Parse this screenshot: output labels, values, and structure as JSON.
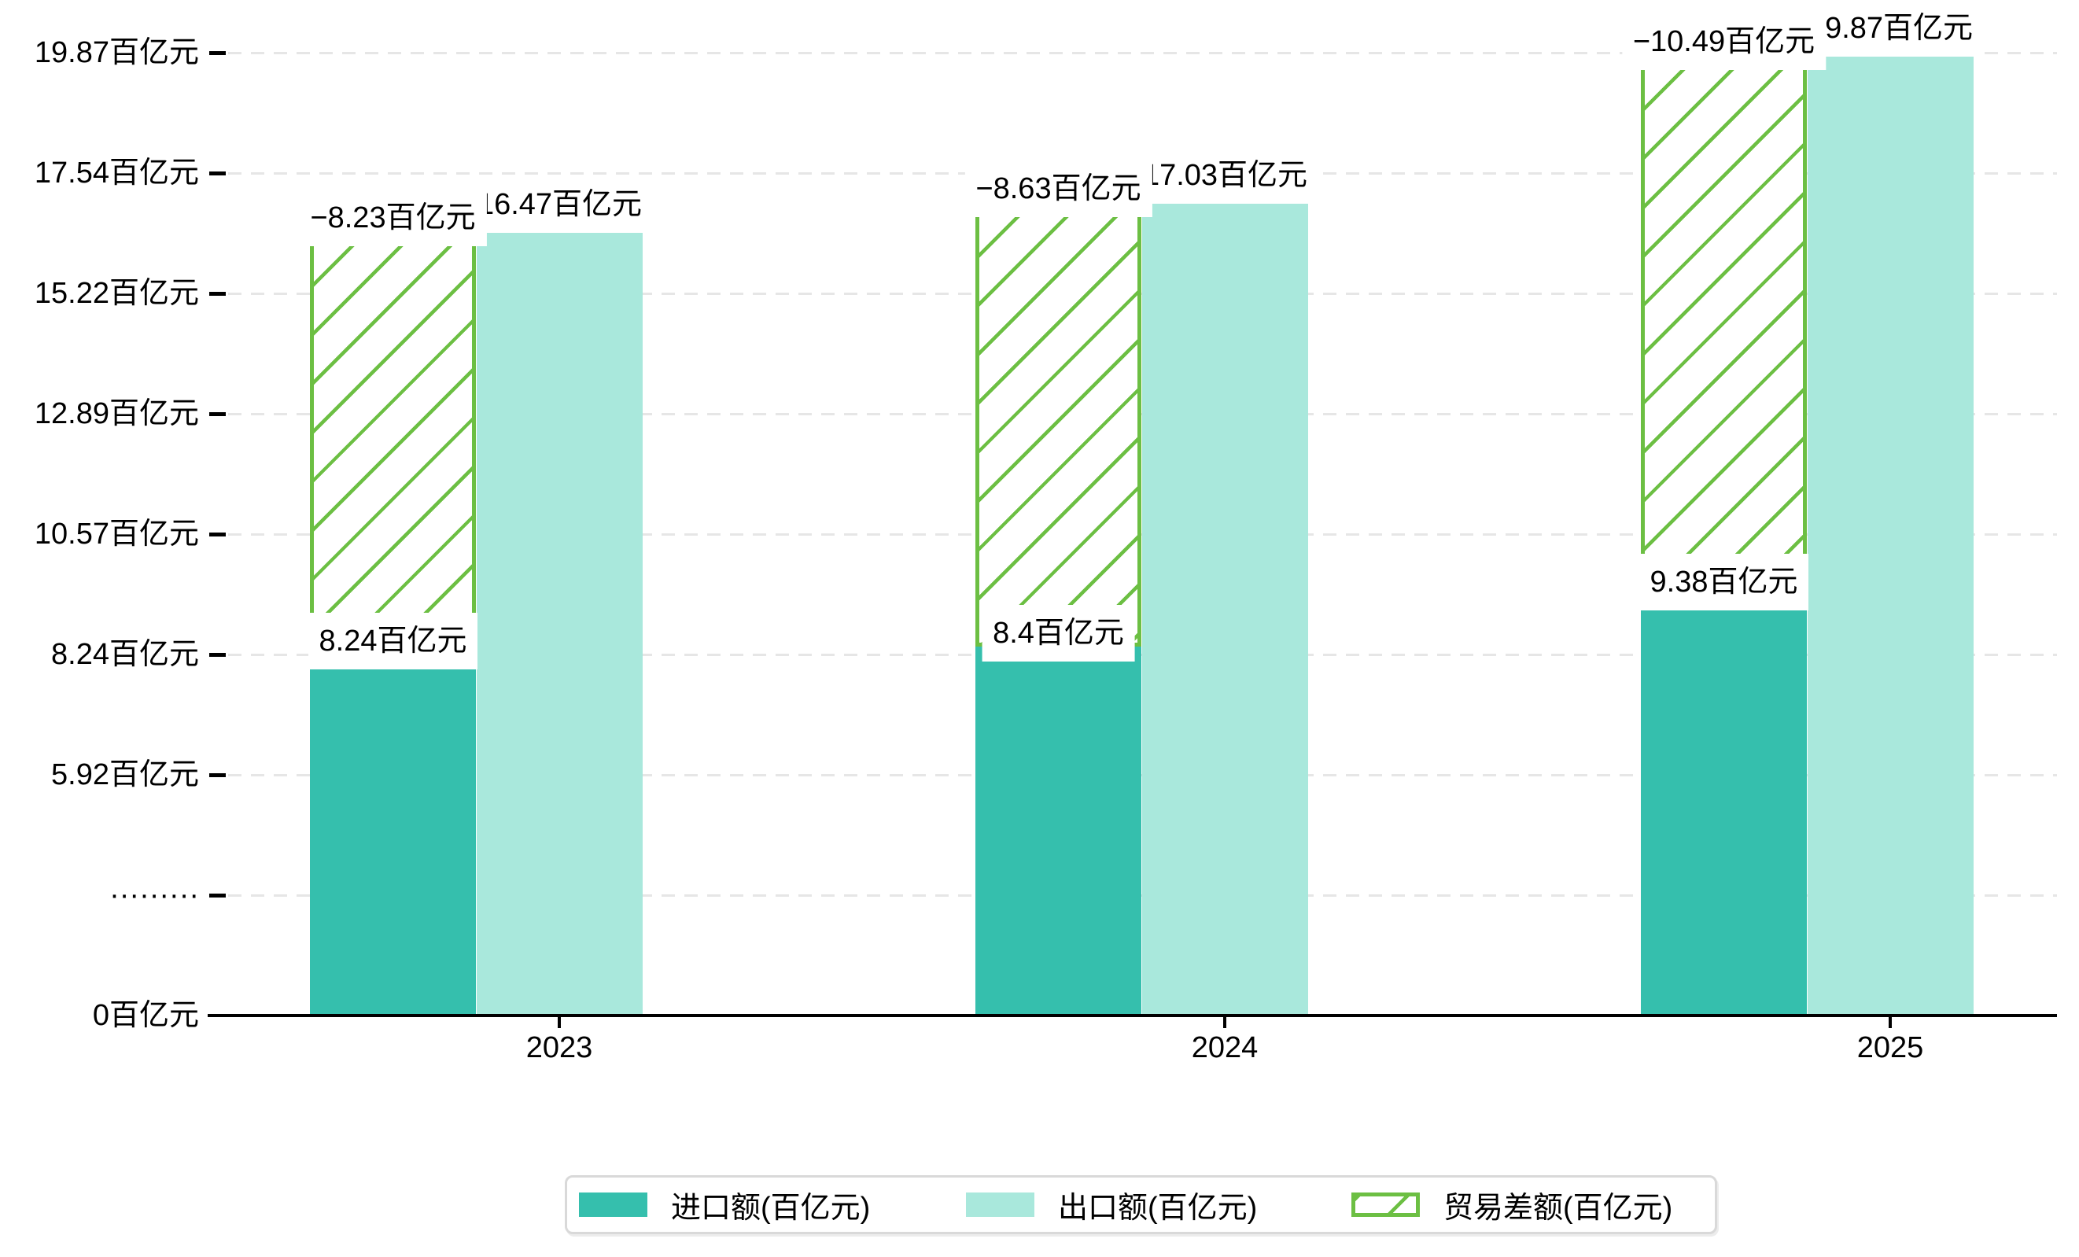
{
  "chart_data": {
    "type": "bar",
    "title": "",
    "categories": [
      "2023",
      "2024",
      "2025"
    ],
    "series": [
      {
        "name": "进口额(百亿元)",
        "key": "import",
        "color": "#35BFAD",
        "values": [
          8.24,
          8.4,
          9.38
        ],
        "data_labels": [
          "8.24百亿元",
          "8.4百亿元",
          "9.38百亿元"
        ]
      },
      {
        "name": "出口额(百亿元)",
        "key": "export",
        "color": "#A9E8DC",
        "values": [
          16.47,
          17.03,
          19.87
        ],
        "data_labels": [
          "16.47百亿元",
          "17.03百亿元",
          "19.87百亿元"
        ]
      },
      {
        "name": "贸易差额(百亿元)",
        "key": "balance",
        "color": "#6CBF43",
        "pattern": "diagonal-hatch",
        "bar_span": "floating bar from import value up to export value",
        "values": [
          -8.23,
          -8.63,
          -10.49
        ],
        "data_labels": [
          "−8.23百亿元",
          "−8.63百亿元",
          "−10.49百亿元"
        ]
      }
    ],
    "y_axis": {
      "unit": "百亿元",
      "tick_labels_top_to_bottom": [
        "19.87百亿元",
        "17.54百亿元",
        "15.22百亿元",
        "12.89百亿元",
        "10.57百亿元",
        "8.24百亿元",
        "5.92百亿元",
        "·········",
        "0百亿元"
      ],
      "tick_values_top_to_bottom": [
        19.87,
        17.54,
        15.22,
        12.89,
        10.57,
        8.24,
        5.92,
        null,
        0
      ],
      "broken_axis_marker": "·········",
      "ylim": [
        0,
        19.87
      ]
    },
    "x_axis": {
      "tick_labels": [
        "2023",
        "2024",
        "2025"
      ]
    },
    "grid": {
      "horizontal": true,
      "style": "dashed"
    },
    "legend_position": "bottom-center"
  },
  "legend": {
    "entries": [
      "进口额(百亿元)",
      "出口额(百亿元)",
      "贸易差额(百亿元)"
    ]
  },
  "colors": {
    "import_bar": "#35BFAD",
    "export_bar": "#A9E8DC",
    "balance_hatch_green": "#6CBF43",
    "gridline": "#E6E6E6",
    "axis_line": "#000000",
    "text": "#000000",
    "label_box_bg": "#FFFFFF",
    "legend_border": "#D9D9D9",
    "background": "#FFFFFF"
  }
}
